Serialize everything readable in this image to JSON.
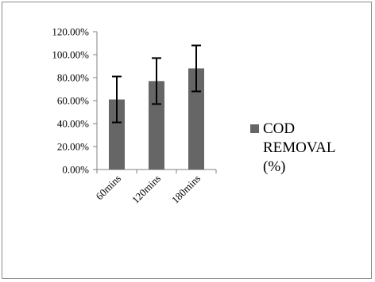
{
  "chart_data": {
    "type": "bar",
    "categories": [
      "60mins",
      "120mins",
      "180mins"
    ],
    "series": [
      {
        "name": "COD REMOVAL (%)",
        "values": [
          0.61,
          0.77,
          0.88
        ],
        "error": [
          0.2,
          0.2,
          0.2
        ],
        "color": "#666666"
      }
    ],
    "ylim": [
      0,
      1.2
    ],
    "yticks": [
      {
        "value": 0.0,
        "label": "0.00%"
      },
      {
        "value": 0.2,
        "label": "20.00%"
      },
      {
        "value": 0.4,
        "label": "40.00%"
      },
      {
        "value": 0.6,
        "label": "60.00%"
      },
      {
        "value": 0.8,
        "label": "80.00%"
      },
      {
        "value": 1.0,
        "label": "100.00%"
      },
      {
        "value": 1.2,
        "label": "120.00%"
      }
    ],
    "legend_position": "right",
    "grid": false,
    "legend_lines": [
      "COD",
      "REMOVAL",
      "(%)"
    ]
  }
}
